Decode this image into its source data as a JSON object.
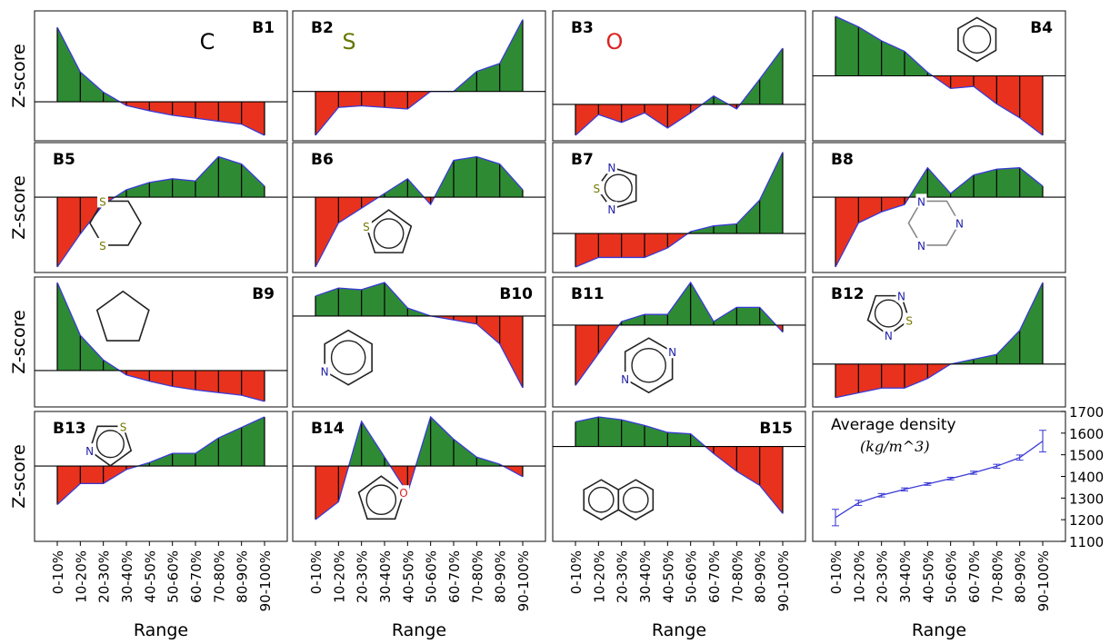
{
  "figure": {
    "y_axis_label": "Z-score",
    "x_axis_label": "Range",
    "x_categories": [
      "0-10%",
      "10-20%",
      "20-30%",
      "30-40%",
      "40-50%",
      "50-60%",
      "60-70%",
      "70-80%",
      "80-90%",
      "90-100%"
    ],
    "colors": {
      "positive": "#2e8b34",
      "negative": "#e8321e",
      "edge": "#3b3bd6",
      "frame": "#333333"
    }
  },
  "chart_data": [
    {
      "id": "B1",
      "type": "area",
      "label": "B1",
      "symbol": "C",
      "values": [
        1.0,
        0.4,
        0.13,
        -0.05,
        -0.12,
        -0.18,
        -0.22,
        -0.26,
        -0.3,
        -0.45
      ]
    },
    {
      "id": "B2",
      "type": "area",
      "label": "B2",
      "symbol": "S",
      "values": [
        -0.55,
        -0.2,
        -0.18,
        -0.2,
        -0.22,
        0.0,
        0.0,
        0.25,
        0.35,
        0.9
      ]
    },
    {
      "id": "B3",
      "type": "area",
      "label": "B3",
      "symbol": "O",
      "values": [
        -0.55,
        -0.18,
        -0.32,
        -0.15,
        -0.42,
        -0.15,
        0.15,
        -0.08,
        0.45,
        1.0
      ]
    },
    {
      "id": "B4",
      "type": "area",
      "label": "B4",
      "symbol": "benzene",
      "values": [
        0.85,
        0.7,
        0.5,
        0.35,
        0.05,
        -0.18,
        -0.15,
        -0.4,
        -0.6,
        -0.85
      ]
    },
    {
      "id": "B5",
      "type": "area",
      "label": "B5",
      "symbol": "1,3-dithiane",
      "values": [
        -0.95,
        -0.5,
        -0.1,
        0.1,
        0.2,
        0.25,
        0.22,
        0.55,
        0.45,
        0.15
      ]
    },
    {
      "id": "B6",
      "type": "area",
      "label": "B6",
      "symbol": "thiophene",
      "values": [
        -0.95,
        -0.35,
        -0.15,
        0.05,
        0.25,
        -0.1,
        0.5,
        0.55,
        0.45,
        0.1
      ]
    },
    {
      "id": "B7",
      "type": "area",
      "label": "B7",
      "symbol": "1,3,4-thiadiazole",
      "values": [
        -0.35,
        -0.25,
        -0.25,
        -0.25,
        -0.15,
        0.02,
        0.08,
        0.1,
        0.35,
        0.85
      ]
    },
    {
      "id": "B8",
      "type": "area",
      "label": "B8",
      "symbol": "1,3,5-triazinane",
      "values": [
        -0.95,
        -0.35,
        -0.2,
        -0.1,
        0.4,
        0.05,
        0.3,
        0.38,
        0.4,
        0.15
      ]
    },
    {
      "id": "B9",
      "type": "area",
      "label": "B9",
      "symbol": "cyclopentane",
      "values": [
        1.0,
        0.4,
        0.12,
        -0.05,
        -0.12,
        -0.18,
        -0.22,
        -0.25,
        -0.28,
        -0.35
      ]
    },
    {
      "id": "B10",
      "type": "area",
      "label": "B10",
      "symbol": "pyridine",
      "values": [
        0.25,
        0.35,
        0.33,
        0.42,
        0.1,
        0.0,
        -0.05,
        -0.1,
        -0.35,
        -0.9
      ]
    },
    {
      "id": "B11",
      "type": "area",
      "label": "B11",
      "symbol": "pyrazine",
      "values": [
        -0.85,
        -0.4,
        0.05,
        0.15,
        0.15,
        0.6,
        0.05,
        0.25,
        0.25,
        -0.1
      ]
    },
    {
      "id": "B12",
      "type": "area",
      "label": "B12",
      "symbol": "1,2,5-thiadiazole",
      "values": [
        -0.35,
        -0.3,
        -0.25,
        -0.25,
        -0.15,
        0.0,
        0.05,
        0.1,
        0.35,
        0.85
      ]
    },
    {
      "id": "B13",
      "type": "area",
      "label": "B13",
      "symbol": "thiazole",
      "values": [
        -0.55,
        -0.25,
        -0.25,
        -0.05,
        0.05,
        0.18,
        0.18,
        0.4,
        0.55,
        0.7
      ]
    },
    {
      "id": "B14",
      "type": "area",
      "label": "B14",
      "symbol": "furan",
      "values": [
        -0.6,
        -0.4,
        0.5,
        0.1,
        -0.3,
        0.55,
        0.3,
        0.1,
        0.02,
        -0.12
      ]
    },
    {
      "id": "B15",
      "type": "area",
      "label": "B15",
      "symbol": "naphthalene",
      "values": [
        0.35,
        0.42,
        0.38,
        0.3,
        0.2,
        0.18,
        -0.1,
        -0.35,
        -0.55,
        -0.95
      ]
    },
    {
      "id": "density",
      "type": "line",
      "title": "Average density",
      "unit_tex": "(kg/m^3)",
      "values": [
        1210,
        1278,
        1313,
        1340,
        1365,
        1390,
        1417,
        1447,
        1487,
        1563
      ],
      "errors": [
        38,
        12,
        8,
        7,
        6,
        6,
        7,
        9,
        12,
        50
      ],
      "ylim": [
        1100,
        1700
      ],
      "yticks": [
        1100,
        1200,
        1300,
        1400,
        1500,
        1600,
        1700
      ],
      "ytick_labels": [
        "1100",
        "1200",
        "1300",
        "1400",
        "1500",
        "1600",
        "1700"
      ]
    }
  ]
}
